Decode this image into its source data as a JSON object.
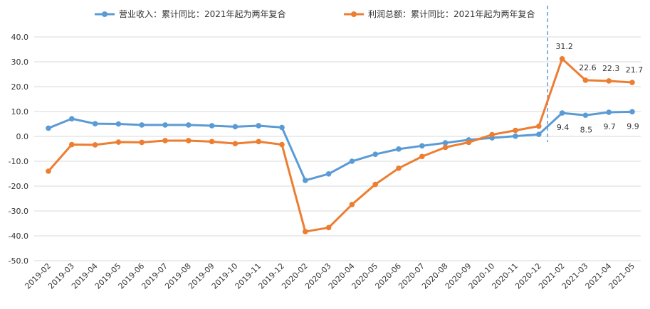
{
  "chart_data": {
    "type": "line",
    "categories": [
      "2019-02",
      "2019-03",
      "2019-04",
      "2019-05",
      "2019-06",
      "2019-07",
      "2019-08",
      "2019-09",
      "2019-10",
      "2019-11",
      "2019-12",
      "2020-02",
      "2020-03",
      "2020-04",
      "2020-05",
      "2020-06",
      "2020-07",
      "2020-08",
      "2020-09",
      "2020-10",
      "2020-11",
      "2020-12",
      "2021-02",
      "2021-03",
      "2021-04",
      "2021-05"
    ],
    "series": [
      {
        "name": "营业收入：累计同比：2021年起为两年复合",
        "color": "#5B9BD5",
        "values": [
          3.3,
          7.1,
          5.1,
          5.0,
          4.6,
          4.6,
          4.6,
          4.3,
          3.9,
          4.3,
          3.6,
          -17.7,
          -15.1,
          -10.0,
          -7.2,
          -5.1,
          -3.8,
          -2.6,
          -1.4,
          -0.6,
          0.1,
          0.8,
          9.4,
          8.5,
          9.7,
          9.9
        ],
        "labels": {
          "22": "9.4",
          "23": "8.5",
          "24": "9.7",
          "25": "9.9"
        }
      },
      {
        "name": "利润总额：累计同比：2021年起为两年复合",
        "color": "#ED7D31",
        "values": [
          -14.0,
          -3.3,
          -3.4,
          -2.3,
          -2.4,
          -1.7,
          -1.7,
          -2.1,
          -2.9,
          -2.1,
          -3.3,
          -38.3,
          -36.7,
          -27.4,
          -19.3,
          -12.8,
          -8.1,
          -4.4,
          -2.4,
          0.7,
          2.4,
          4.1,
          31.2,
          22.6,
          22.3,
          21.7
        ],
        "labels": {
          "22": "31.2",
          "23": "22.6",
          "24": "22.3",
          "25": "21.7"
        }
      }
    ],
    "yticks": [
      "40.0",
      "30.0",
      "20.0",
      "10.0",
      "0.0",
      "-10.0",
      "-20.0",
      "-30.0",
      "-40.0",
      "-50.0"
    ],
    "ylim": [
      -50,
      40
    ],
    "ystep": 10,
    "grid": true,
    "legend_position": "top",
    "divider_after_category": "2020-12",
    "divider_color": "#5B9BD5"
  }
}
